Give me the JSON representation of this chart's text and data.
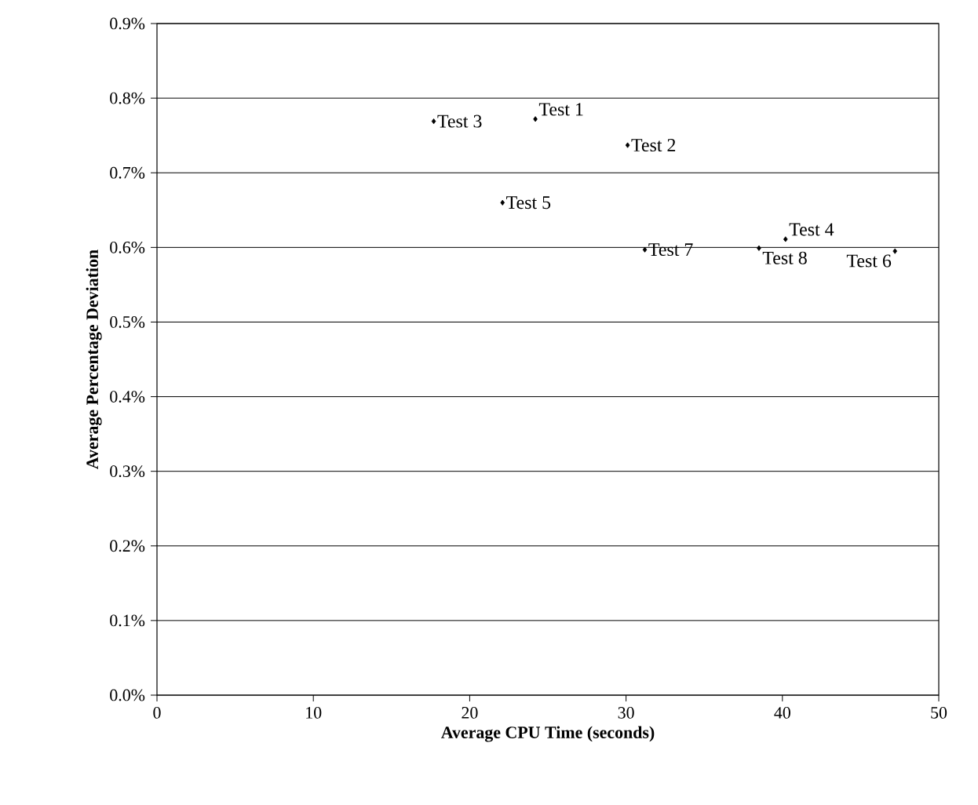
{
  "chart_data": {
    "type": "scatter",
    "xlabel": "Average CPU Time (seconds)",
    "ylabel": "Average Percentage Deviation",
    "series": [
      {
        "color": "#000000",
        "x": [
          24.2,
          30.1,
          17.7,
          40.2,
          22.1,
          47.2,
          31.2,
          38.5
        ],
        "values": [
          0.772,
          0.737,
          0.769,
          0.611,
          0.66,
          0.595,
          0.597,
          0.599
        ]
      }
    ],
    "marker": "diamond",
    "grid": "y",
    "xlim": [
      0,
      50
    ],
    "xticks": [
      0,
      10,
      20,
      30,
      40,
      50
    ],
    "ylim": [
      0,
      0.9
    ],
    "yticks": [
      {
        "value": 0,
        "label": "0.0%"
      },
      {
        "value": 0.1,
        "label": "0.1%"
      },
      {
        "value": 0.2,
        "label": "0.2%"
      },
      {
        "value": 0.3,
        "label": "0.3%"
      },
      {
        "value": 0.4,
        "label": "0.4%"
      },
      {
        "value": 0.5,
        "label": "0.5%"
      },
      {
        "value": 0.6,
        "label": "0.6%"
      },
      {
        "value": 0.7,
        "label": "0.7%"
      },
      {
        "value": 0.8,
        "label": "0.8%"
      },
      {
        "value": 0.9,
        "label": "0.9%"
      }
    ],
    "annotations": [
      {
        "text": "Test 1",
        "x": 24.2,
        "y": 0.772
      },
      {
        "text": "Test 2",
        "x": 30.1,
        "y": 0.737
      },
      {
        "text": "Test 3",
        "x": 17.7,
        "y": 0.769
      },
      {
        "text": "Test 4",
        "x": 40.2,
        "y": 0.611
      },
      {
        "text": "Test 5",
        "x": 22.1,
        "y": 0.66
      },
      {
        "text": "Test 6",
        "x": 47.2,
        "y": 0.595
      },
      {
        "text": "Test 7",
        "x": 31.2,
        "y": 0.597
      },
      {
        "text": "Test 8",
        "x": 38.5,
        "y": 0.599
      }
    ]
  }
}
